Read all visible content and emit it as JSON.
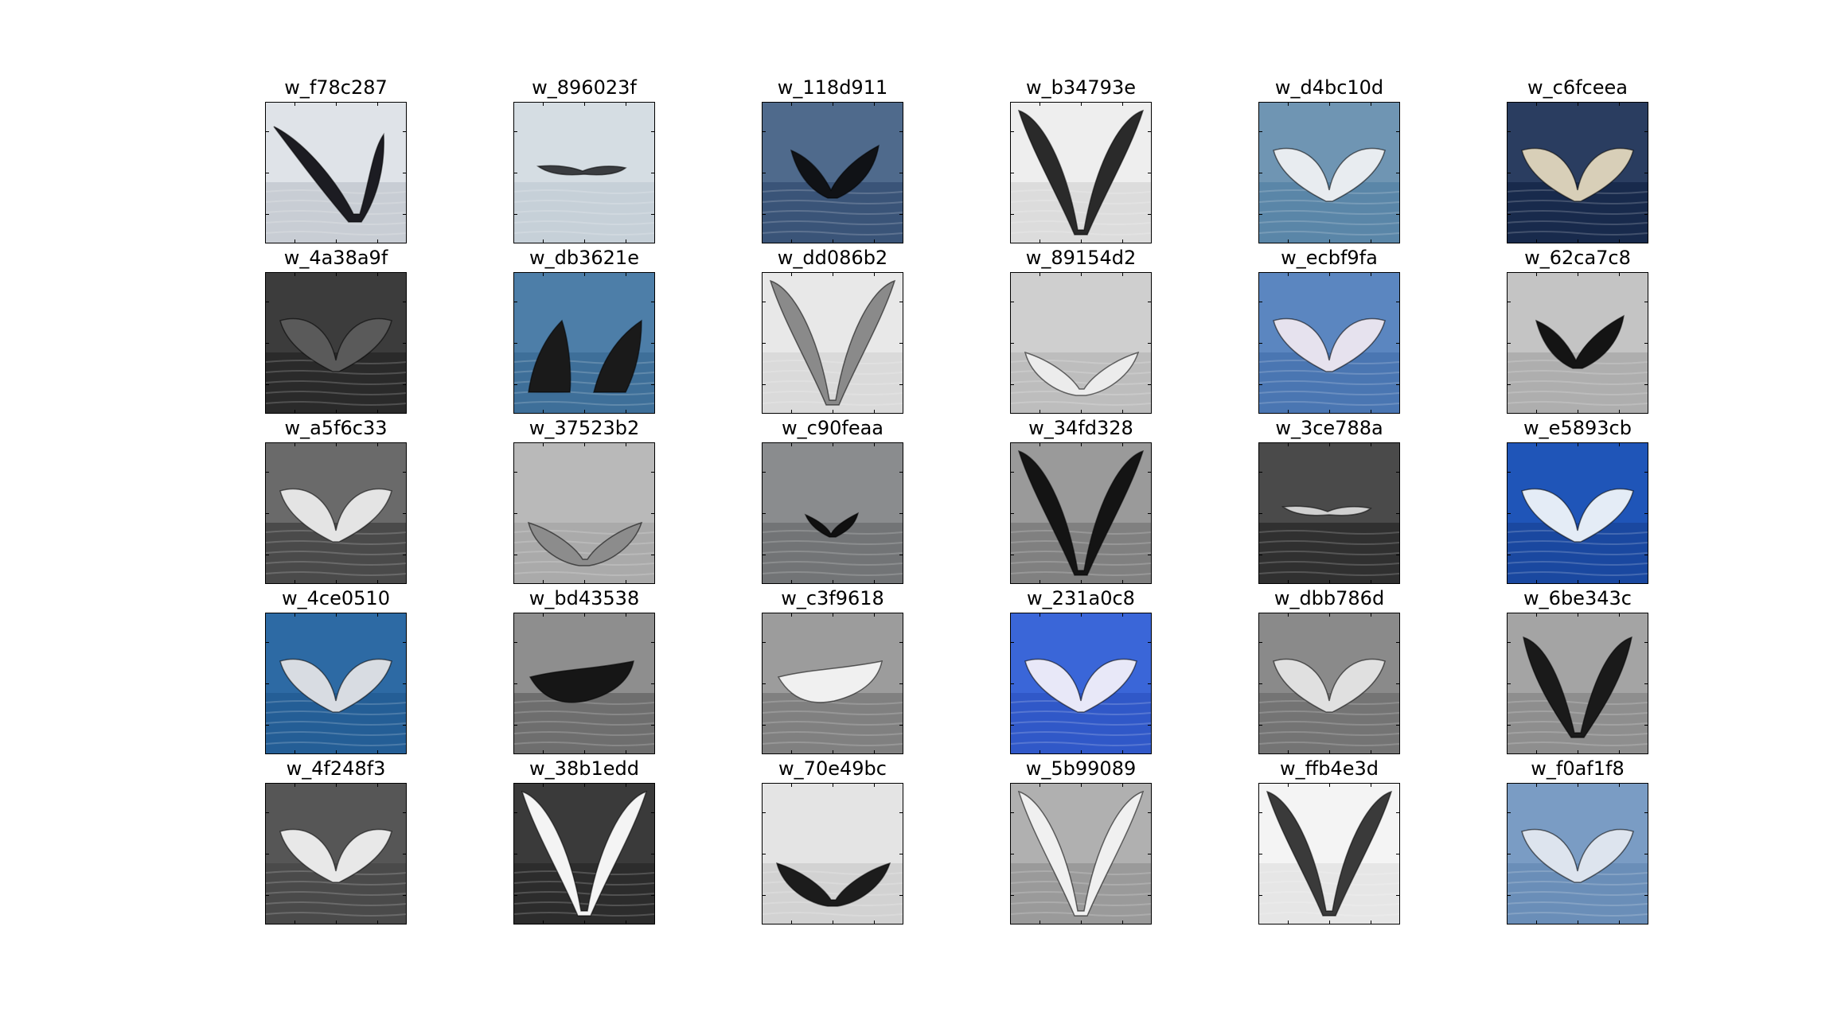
{
  "thumbnails": [
    {
      "label": "w_f78c287",
      "bg": "#dfe3e8",
      "water": "#c8cdd4",
      "fluke": "#1c1c22",
      "shape": "v-big-right"
    },
    {
      "label": "w_896023f",
      "bg": "#d5dde3",
      "water": "#c6d0d8",
      "fluke": "#3a3c40",
      "shape": "flat-small"
    },
    {
      "label": "w_118d911",
      "bg": "#4f6a8c",
      "water": "#3a5478",
      "fluke": "#101216",
      "shape": "tail-mid"
    },
    {
      "label": "w_b34793e",
      "bg": "#eeeeee",
      "water": "#dcdcdc",
      "fluke": "#2a2a2a",
      "shape": "v-full"
    },
    {
      "label": "w_d4bc10d",
      "bg": "#6f95b3",
      "water": "#5a86a8",
      "fluke": "#e8ecf0",
      "shape": "wide-underside"
    },
    {
      "label": "w_c6fceea",
      "bg": "#2a3d60",
      "water": "#182a4c",
      "fluke": "#d8cfb8",
      "shape": "wide-underside"
    },
    {
      "label": "w_4a38a9f",
      "bg": "#3c3c3c",
      "water": "#2a2a2a",
      "fluke": "#5a5a5a",
      "shape": "wide-underside"
    },
    {
      "label": "w_db3621e",
      "bg": "#4d7ea8",
      "water": "#3e6f99",
      "fluke": "#1a1a1a",
      "shape": "two-lobes"
    },
    {
      "label": "w_dd086b2",
      "bg": "#e8e8e8",
      "water": "#dadada",
      "fluke": "#8a8a8a",
      "shape": "v-full"
    },
    {
      "label": "w_89154d2",
      "bg": "#cfcfcf",
      "water": "#bdbdbd",
      "fluke": "#ececec",
      "shape": "low-wide"
    },
    {
      "label": "w_ecbf9fa",
      "bg": "#5b86c0",
      "water": "#4a76b2",
      "fluke": "#e6e2ee",
      "shape": "wide-underside"
    },
    {
      "label": "w_62ca7c8",
      "bg": "#c4c4c4",
      "water": "#aeaeae",
      "fluke": "#141414",
      "shape": "tail-mid"
    },
    {
      "label": "w_a5f6c33",
      "bg": "#6a6a6a",
      "water": "#4a4a4a",
      "fluke": "#e4e4e4",
      "shape": "wide-underside"
    },
    {
      "label": "w_37523b2",
      "bg": "#b9b9b9",
      "water": "#aaaaaa",
      "fluke": "#8c8c8c",
      "shape": "low-wide"
    },
    {
      "label": "w_c90feaa",
      "bg": "#8a8c8e",
      "water": "#727476",
      "fluke": "#101010",
      "shape": "tail-small"
    },
    {
      "label": "w_34fd328",
      "bg": "#9a9a9a",
      "water": "#808080",
      "fluke": "#141414",
      "shape": "v-full"
    },
    {
      "label": "w_3ce788a",
      "bg": "#4a4a4a",
      "water": "#303030",
      "fluke": "#d0d0d0",
      "shape": "flat-small"
    },
    {
      "label": "w_e5893cb",
      "bg": "#1f55b8",
      "water": "#1a48a0",
      "fluke": "#e4ecf6",
      "shape": "wide-underside"
    },
    {
      "label": "w_4ce0510",
      "bg": "#2d6aa4",
      "water": "#245e96",
      "fluke": "#d8dce2",
      "shape": "wide-underside"
    },
    {
      "label": "w_bd43538",
      "bg": "#8e8e8e",
      "water": "#6e6e6e",
      "fluke": "#161616",
      "shape": "tilt"
    },
    {
      "label": "w_c3f9618",
      "bg": "#9c9c9c",
      "water": "#808080",
      "fluke": "#f0f0f0",
      "shape": "tilt"
    },
    {
      "label": "w_231a0c8",
      "bg": "#3a66d8",
      "water": "#3058c8",
      "fluke": "#e8e8f8",
      "shape": "wide-underside"
    },
    {
      "label": "w_dbb786d",
      "bg": "#8a8a8a",
      "water": "#747474",
      "fluke": "#e0e0e0",
      "shape": "wide-underside"
    },
    {
      "label": "w_6be343c",
      "bg": "#a4a4a4",
      "water": "#8e8e8e",
      "fluke": "#1a1a1a",
      "shape": "v-big"
    },
    {
      "label": "w_4f248f3",
      "bg": "#565656",
      "water": "#4a4a4a",
      "fluke": "#e8e8e8",
      "shape": "wide-underside"
    },
    {
      "label": "w_38b1edd",
      "bg": "#3a3a3a",
      "water": "#2c2c2c",
      "fluke": "#f4f4f4",
      "shape": "v-full"
    },
    {
      "label": "w_70e49bc",
      "bg": "#e4e4e4",
      "water": "#d2d2d2",
      "fluke": "#1c1c1c",
      "shape": "low-wide"
    },
    {
      "label": "w_5b99089",
      "bg": "#b0b0b0",
      "water": "#9a9a9a",
      "fluke": "#f0f0f0",
      "shape": "v-full"
    },
    {
      "label": "w_ffb4e3d",
      "bg": "#f4f4f4",
      "water": "#e6e6e6",
      "fluke": "#3a3a3a",
      "shape": "v-full"
    },
    {
      "label": "w_f0af1f8",
      "bg": "#7a9cc4",
      "water": "#6a8eb8",
      "fluke": "#dde4ee",
      "shape": "wide-underside"
    }
  ]
}
